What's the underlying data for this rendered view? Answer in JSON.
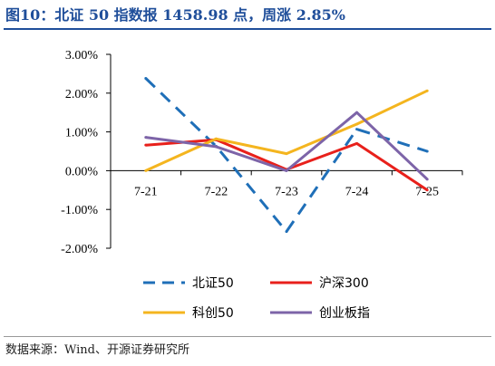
{
  "title": "图10：北证 50 指数报 1458.98 点，周涨 2.85%",
  "source": "数据来源：Wind、开源证券研究所",
  "chart_data": {
    "type": "line",
    "categories": [
      "7-21",
      "7-22",
      "7-23",
      "7-24",
      "7-25"
    ],
    "y_tick_labels": [
      "3.00%",
      "2.00%",
      "1.00%",
      "0.00%",
      "-1.00%",
      "-2.00%"
    ],
    "y_tick_values": [
      3,
      2,
      1,
      0,
      -1,
      -2
    ],
    "ylim": [
      -2,
      3
    ],
    "y_unit": "%",
    "grid": false,
    "legend_position": "bottom",
    "series": [
      {
        "name": "北证50",
        "color": "#1f6fb8",
        "dash": "dashed",
        "values": [
          2.38,
          0.63,
          -1.57,
          1.07,
          0.5
        ]
      },
      {
        "name": "沪深300",
        "color": "#e8201b",
        "dash": "solid",
        "values": [
          0.66,
          0.8,
          0.03,
          0.7,
          -0.5
        ]
      },
      {
        "name": "科创50",
        "color": "#f4b51f",
        "dash": "solid",
        "values": [
          0.0,
          0.82,
          0.44,
          1.2,
          2.06
        ]
      },
      {
        "name": "创业板指",
        "color": "#7d64a8",
        "dash": "solid",
        "values": [
          0.86,
          0.62,
          0.0,
          1.5,
          -0.22
        ]
      }
    ]
  }
}
